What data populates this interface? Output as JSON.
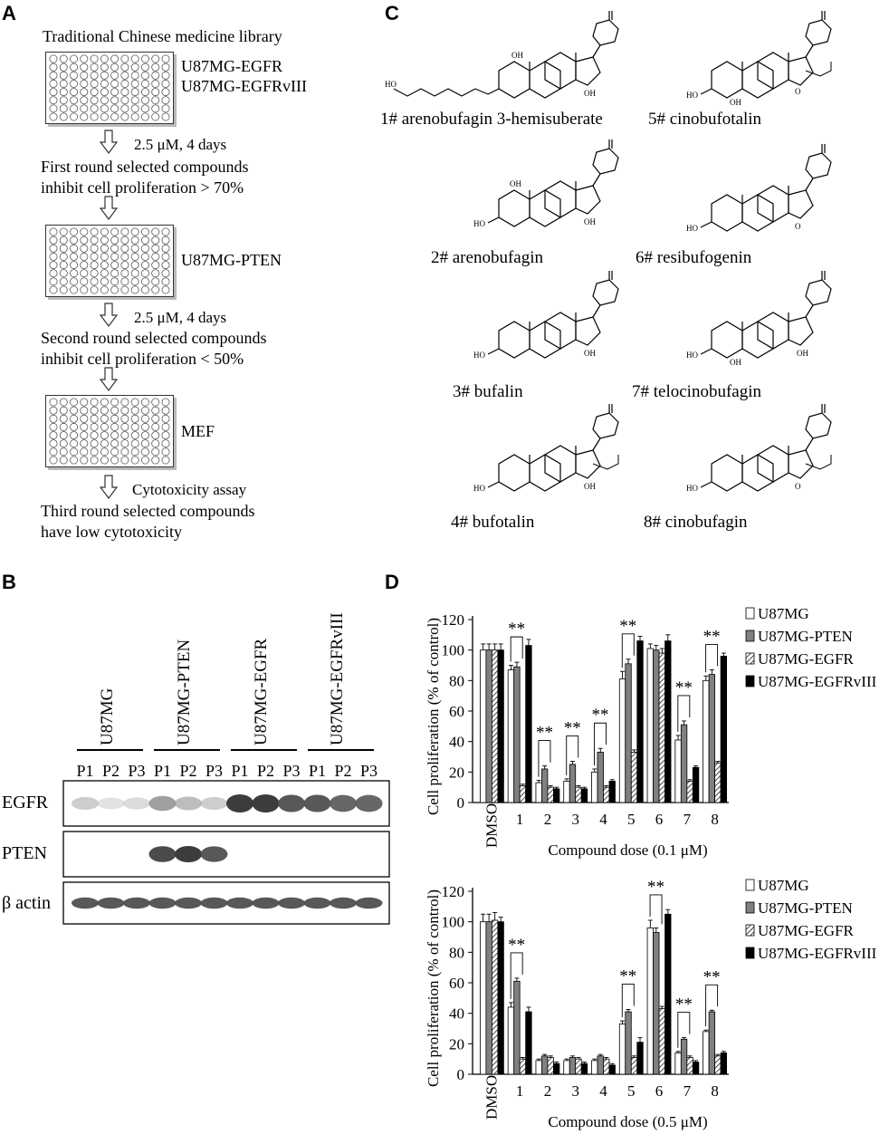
{
  "panel_labels": [
    "A",
    "B",
    "C",
    "D"
  ],
  "panelA": {
    "title": "Traditional Chinese medicine library",
    "plates": [
      {
        "label_lines": [
          "U87MG-EGFR",
          "U87MG-EGFRvIII"
        ]
      },
      {
        "label_lines": [
          "U87MG-PTEN"
        ]
      },
      {
        "label_lines": [
          "MEF"
        ]
      }
    ],
    "steps": [
      {
        "condition": "2.5 μM, 4 days",
        "lines": [
          "First round selected compounds",
          "inhibit cell proliferation > 70%"
        ]
      },
      {
        "condition": "2.5 μM, 4 days",
        "lines": [
          "Second round selected compounds",
          "inhibit cell proliferation < 50%"
        ]
      },
      {
        "condition": "Cytotoxicity assay",
        "lines": [
          "Third round selected compounds",
          "have low cytotoxicity"
        ]
      }
    ],
    "plate_grid": {
      "rows": 8,
      "cols": 12
    }
  },
  "panelB": {
    "cell_lines": [
      "U87MG",
      "U87MG-PTEN",
      "U87MG-EGFR",
      "U87MG-EGFRvIII"
    ],
    "lanes": [
      "P1",
      "P2",
      "P3",
      "P1",
      "P2",
      "P3",
      "P1",
      "P2",
      "P3",
      "P1",
      "P2",
      "P3"
    ],
    "blots": [
      {
        "name": "EGFR",
        "intensity": [
          0.35,
          0.2,
          0.25,
          0.6,
          0.45,
          0.35,
          1,
          1,
          0.9,
          0.9,
          0.85,
          0.85
        ]
      },
      {
        "name": "PTEN",
        "intensity": [
          0,
          0,
          0,
          0.95,
          1,
          0.9,
          0,
          0,
          0,
          0,
          0,
          0
        ]
      },
      {
        "name": "β actin",
        "intensity": [
          0.9,
          0.9,
          0.9,
          0.9,
          0.9,
          0.9,
          0.9,
          0.9,
          0.9,
          0.9,
          0.9,
          0.9
        ]
      }
    ]
  },
  "panelC": {
    "compounds": [
      {
        "label": "1# arenobufagin 3-hemisuberate"
      },
      {
        "label": "2# arenobufagin"
      },
      {
        "label": "3# bufalin"
      },
      {
        "label": "4# bufotalin"
      },
      {
        "label": "5# cinobufotalin"
      },
      {
        "label": "6# resibufogenin"
      },
      {
        "label": "7# telocinobufagin"
      },
      {
        "label": "8# cinobufagin"
      }
    ]
  },
  "chart_data": [
    {
      "type": "bar",
      "title": "",
      "xlabel": "Compound dose (0.1 μM)",
      "ylabel": "Cell proliferation (% of control)",
      "ylim": [
        0,
        120
      ],
      "yticks": [
        0,
        20,
        40,
        60,
        80,
        100,
        120
      ],
      "categories": [
        "DMSO",
        "1",
        "2",
        "3",
        "4",
        "5",
        "6",
        "7",
        "8"
      ],
      "significance": [
        "",
        "**",
        "**",
        "**",
        "**",
        "**",
        "",
        "**",
        "**"
      ],
      "legend_position": "right",
      "series": [
        {
          "name": "U87MG",
          "fill": "white",
          "values": [
            100,
            87,
            13,
            14,
            20,
            81,
            101,
            41,
            80
          ],
          "errors": [
            4,
            3,
            1.5,
            1.5,
            2,
            5,
            3,
            3,
            3
          ]
        },
        {
          "name": "U87MG-PTEN",
          "fill": "gray",
          "values": [
            100,
            89,
            22,
            25,
            33,
            91,
            100,
            51,
            84
          ],
          "errors": [
            4,
            3,
            2,
            2,
            2.5,
            3,
            3,
            2.5,
            3
          ]
        },
        {
          "name": "U87MG-EGFR",
          "fill": "hatch",
          "values": [
            100,
            11,
            10,
            10,
            10,
            33,
            98,
            14,
            26
          ],
          "errors": [
            4,
            1,
            1,
            1,
            1,
            1.5,
            3,
            1,
            1
          ]
        },
        {
          "name": "U87MG-EGFRvIII",
          "fill": "black",
          "values": [
            100,
            103,
            9,
            9,
            14,
            106,
            106,
            23,
            96
          ],
          "errors": [
            4,
            4,
            1,
            1,
            1,
            3,
            4,
            1,
            2
          ]
        }
      ]
    },
    {
      "type": "bar",
      "title": "",
      "xlabel": "Compound dose (0.5 μM)",
      "ylabel": "Cell proliferation (% of control)",
      "ylim": [
        0,
        120
      ],
      "yticks": [
        0,
        20,
        40,
        60,
        80,
        100,
        120
      ],
      "categories": [
        "DMSO",
        "1",
        "2",
        "3",
        "4",
        "5",
        "6",
        "7",
        "8"
      ],
      "significance": [
        "",
        "**",
        "",
        "",
        "",
        "**",
        "**",
        "**",
        "**"
      ],
      "legend_position": "right",
      "series": [
        {
          "name": "U87MG",
          "fill": "white",
          "values": [
            100,
            44,
            9,
            9,
            9,
            33,
            96,
            14,
            28
          ],
          "errors": [
            5,
            3,
            1,
            1,
            1,
            2,
            5,
            1,
            1
          ]
        },
        {
          "name": "U87MG-PTEN",
          "fill": "gray",
          "values": [
            100,
            61,
            12,
            11,
            12,
            41,
            93,
            23,
            41
          ],
          "errors": [
            5,
            2,
            1,
            1,
            1,
            1.5,
            3,
            1,
            1
          ]
        },
        {
          "name": "U87MG-EGFR",
          "fill": "hatch",
          "values": [
            101,
            10,
            11,
            10,
            10,
            11,
            43,
            11,
            12
          ],
          "errors": [
            5,
            1,
            1,
            1,
            1,
            1,
            1.5,
            1,
            1
          ]
        },
        {
          "name": "U87MG-EGFRvIII",
          "fill": "black",
          "values": [
            100,
            41,
            7,
            7,
            6,
            21,
            105,
            8,
            14
          ],
          "errors": [
            3,
            3,
            1,
            1,
            1,
            3,
            3,
            1,
            1
          ]
        }
      ]
    }
  ]
}
